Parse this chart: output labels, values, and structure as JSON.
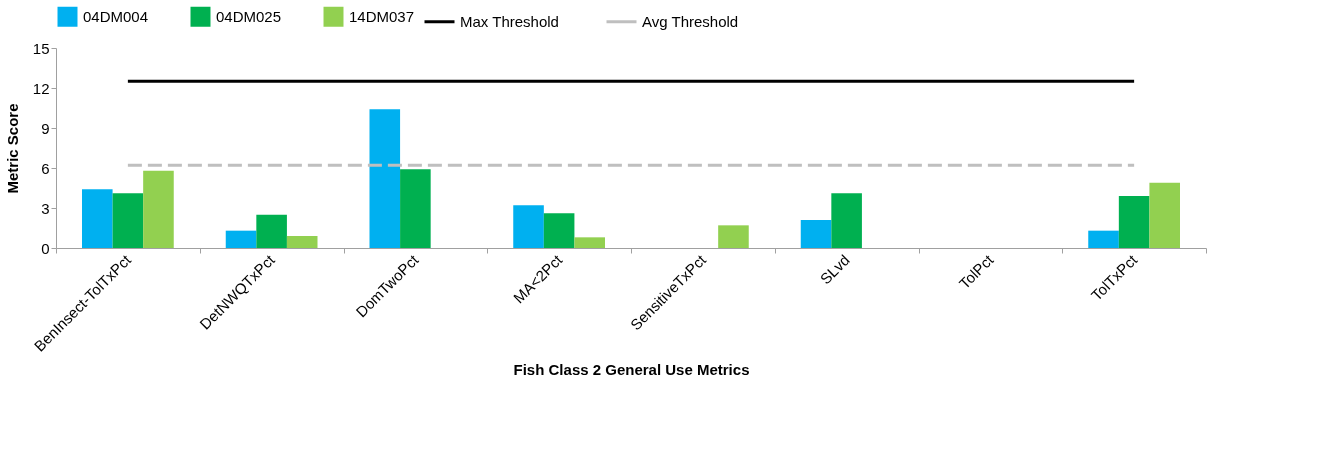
{
  "chart_data": {
    "type": "bar",
    "xlabel": "Fish Class 2 General Use Metrics",
    "ylabel": "Metric Score",
    "categories": [
      "BenInsect-TolTxPct",
      "DetNWQTxPct",
      "DomTwoPct",
      "MA<2Pct",
      "SensitiveTxPct",
      "SLvd",
      "TolPct",
      "TolTxPct"
    ],
    "series": [
      {
        "name": "04DM004",
        "color": "#00b0f0",
        "values": [
          4.4,
          1.3,
          10.4,
          3.2,
          0,
          2.1,
          0,
          1.3
        ]
      },
      {
        "name": "04DM025",
        "color": "#00b050",
        "values": [
          4.1,
          2.5,
          5.9,
          2.6,
          0,
          4.1,
          0,
          3.9
        ]
      },
      {
        "name": "14DM037",
        "color": "#92d050",
        "values": [
          5.8,
          0.9,
          0,
          0.8,
          1.7,
          0,
          0,
          4.9
        ]
      },
      {
        "name": "Max Threshold",
        "type": "line",
        "color": "#000000",
        "line_style": "solid",
        "values": [
          12.5,
          12.5,
          12.5,
          12.5,
          12.5,
          12.5,
          12.5,
          12.5
        ]
      },
      {
        "name": "Avg Threshold",
        "type": "line",
        "color": "#bfbfbf",
        "line_style": "dashed",
        "values": [
          6.2,
          6.2,
          6.2,
          6.2,
          6.2,
          6.2,
          6.2,
          6.2
        ]
      }
    ],
    "ylim": [
      0,
      15
    ],
    "yticks": [
      0,
      3,
      6,
      9,
      12,
      15
    ],
    "grid": false,
    "legend": "top"
  }
}
